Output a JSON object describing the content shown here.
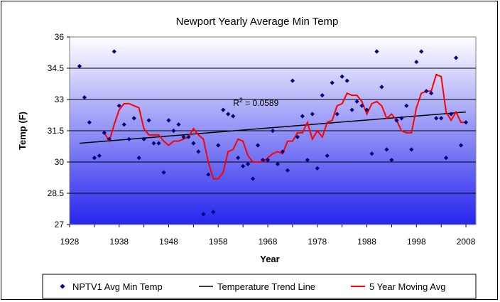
{
  "chart_data": {
    "type": "scatter",
    "title": "Newport Yearly Average Min Temp",
    "xlabel": "Year",
    "ylabel": "Temp (F)",
    "xlim": [
      1928,
      2010
    ],
    "ylim": [
      27,
      36
    ],
    "xticks": [
      1928,
      1938,
      1948,
      1958,
      1968,
      1978,
      1988,
      1998,
      2008
    ],
    "yticks": [
      27,
      28.5,
      30,
      31.5,
      33,
      34.5,
      36
    ],
    "ytick_labels": [
      "27",
      "28.5",
      "30",
      "31.5",
      "33",
      "34.5",
      "36"
    ],
    "grid": "horizontal",
    "legend_position": "bottom",
    "annotation": {
      "prefix": "R",
      "sup": "2",
      "suffix": " = 0.0589",
      "x": 1961,
      "y": 32.7
    },
    "colors": {
      "points": "#000080",
      "trend": "#000000",
      "moving_avg": "#ff0000"
    },
    "series": [
      {
        "name": "NPTV1 Avg Min Temp",
        "kind": "points",
        "x": [
          1930,
          1931,
          1932,
          1933,
          1934,
          1935,
          1936,
          1937,
          1938,
          1939,
          1940,
          1941,
          1942,
          1943,
          1944,
          1945,
          1946,
          1947,
          1948,
          1949,
          1950,
          1951,
          1952,
          1953,
          1954,
          1955,
          1956,
          1957,
          1958,
          1959,
          1960,
          1961,
          1962,
          1963,
          1964,
          1965,
          1966,
          1967,
          1968,
          1969,
          1970,
          1971,
          1972,
          1973,
          1974,
          1975,
          1976,
          1977,
          1978,
          1979,
          1980,
          1981,
          1982,
          1983,
          1984,
          1985,
          1986,
          1987,
          1988,
          1989,
          1990,
          1991,
          1992,
          1993,
          1994,
          1995,
          1996,
          1997,
          1998,
          1999,
          2000,
          2001,
          2002,
          2003,
          2004,
          2005,
          2006,
          2007,
          2008
        ],
        "y": [
          34.6,
          33.1,
          31.9,
          30.2,
          30.3,
          31.4,
          31.1,
          35.3,
          32.7,
          31.8,
          31.1,
          32.1,
          30.2,
          31.1,
          32,
          30.9,
          30.9,
          29.5,
          32,
          31.5,
          31.8,
          31.2,
          31.2,
          30.9,
          30.5,
          27.5,
          29.4,
          27.6,
          30.8,
          32.5,
          32.3,
          32.2,
          30.2,
          29.8,
          29.9,
          29.2,
          30.8,
          30.1,
          30.1,
          31.5,
          29.9,
          30.5,
          29.6,
          33.9,
          31.2,
          32.2,
          30.1,
          32.3,
          29.7,
          33.2,
          30.3,
          33.8,
          32.3,
          34.1,
          33.9,
          32.5,
          32.9,
          32.7,
          32.5,
          30.4,
          35.3,
          33.6,
          30.6,
          30.1,
          32,
          32.1,
          32.7,
          30.6,
          34.8,
          35.3,
          33.4,
          33.3,
          32.1,
          32.1,
          30.2,
          32.3,
          35,
          30.8,
          31.9
        ]
      },
      {
        "name": "Temperature Trend Line",
        "kind": "line",
        "x": [
          1930,
          2008
        ],
        "y": [
          30.9,
          32.4
        ]
      },
      {
        "name": "5 Year Moving Avg",
        "kind": "line",
        "x": [
          1935,
          1936,
          1937,
          1938,
          1939,
          1940,
          1941,
          1942,
          1943,
          1944,
          1945,
          1946,
          1947,
          1948,
          1949,
          1950,
          1951,
          1952,
          1953,
          1954,
          1955,
          1956,
          1957,
          1958,
          1959,
          1960,
          1961,
          1962,
          1963,
          1964,
          1965,
          1966,
          1967,
          1968,
          1969,
          1970,
          1971,
          1972,
          1973,
          1974,
          1975,
          1976,
          1977,
          1978,
          1979,
          1980,
          1981,
          1982,
          1983,
          1984,
          1985,
          1986,
          1987,
          1988,
          1989,
          1990,
          1991,
          1992,
          1993,
          1994,
          1995,
          1996,
          1997,
          1998,
          1999,
          2000,
          2001,
          2002,
          2003,
          2004,
          2005,
          2006,
          2007,
          2008
        ],
        "y": [
          31.4,
          31.0,
          31.8,
          32.5,
          32.8,
          32.8,
          32.7,
          32.6,
          31.6,
          31.3,
          31.3,
          31.3,
          31.0,
          30.8,
          31.0,
          31.0,
          31.1,
          31.2,
          31.6,
          31.3,
          31.1,
          30.0,
          29.2,
          29.2,
          29.5,
          30.5,
          30.6,
          31.1,
          31.0,
          30.3,
          30.0,
          30.0,
          30.0,
          30.2,
          30.4,
          30.5,
          30.4,
          31.0,
          31.0,
          31.4,
          31.4,
          31.9,
          31.1,
          31.5,
          31.2,
          31.9,
          32.0,
          32.7,
          32.8,
          33.3,
          33.2,
          33.2,
          32.9,
          32.3,
          32.8,
          32.9,
          32.7,
          32.1,
          32.3,
          32.0,
          31.5,
          31.4,
          31.4,
          32.6,
          33.3,
          33.4,
          33.4,
          34.2,
          34.1,
          32.4,
          32.0,
          32.4,
          31.9,
          31.9
        ]
      }
    ]
  }
}
